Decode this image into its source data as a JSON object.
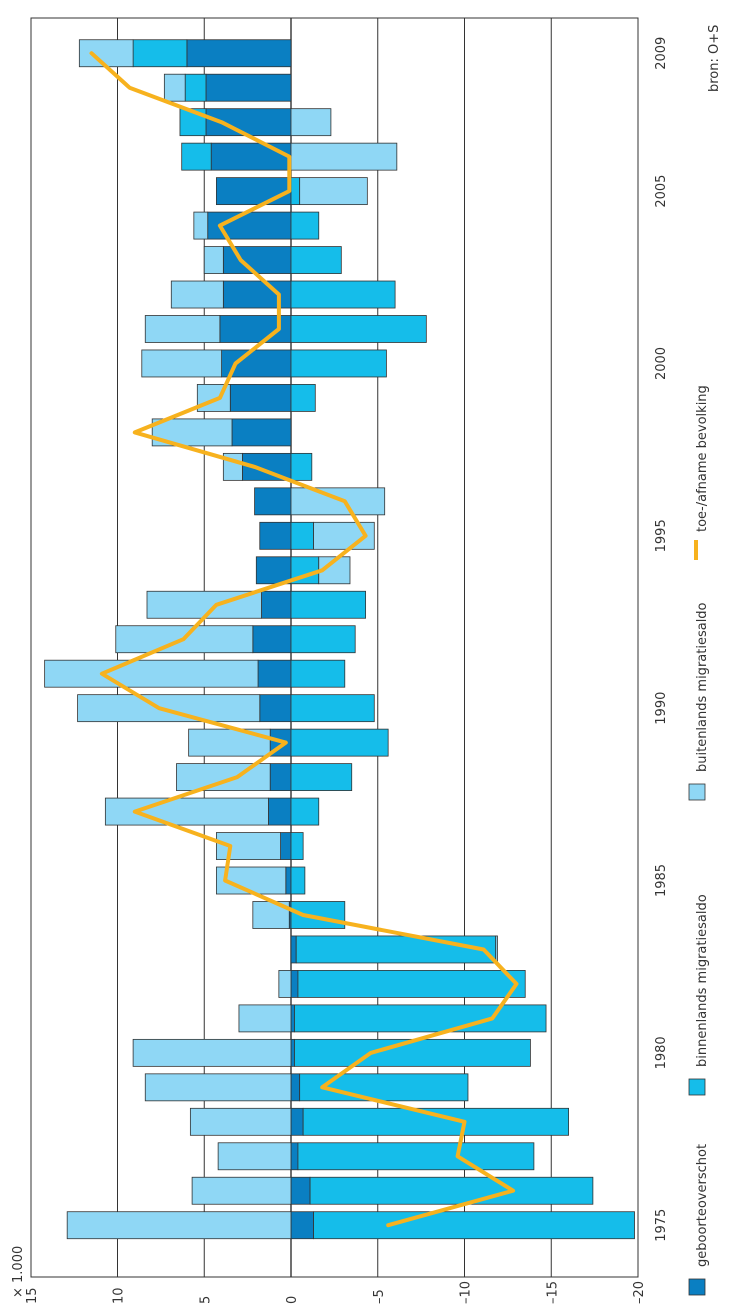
{
  "chart_data": {
    "type": "bar",
    "orientation": "rotated-vertical",
    "stacked": true,
    "unit": "× 1.000",
    "source": "bron: O+S",
    "value_axis": {
      "range": [
        -20,
        15
      ],
      "ticks": [
        "15",
        "10",
        "5",
        "0",
        "–5",
        "–10",
        "–15",
        "–20"
      ],
      "tick_values": [
        15,
        10,
        5,
        0,
        -5,
        -10,
        -15,
        -20
      ]
    },
    "year_ticks": [
      "1975",
      "1980",
      "1985",
      "1990",
      "1995",
      "2000",
      "2005",
      "2009"
    ],
    "grid": true,
    "colors": {
      "geboorteoverschot": "#0a7fc2",
      "binnenlands": "#15bdea",
      "buitenlands": "#8fd7f5",
      "line": "#f7b21e",
      "grid": "#333333"
    },
    "legend": [
      {
        "key": "geboorteoverschot",
        "label": "geboorteoverschot"
      },
      {
        "key": "binnenlands",
        "label": "binnenlands migratiesaldo"
      },
      {
        "key": "buitenlands",
        "label": "buitenlands migratiesaldo"
      },
      {
        "key": "line",
        "label": "toe-/afname bevolking"
      }
    ],
    "years": [
      1975,
      1976,
      1977,
      1978,
      1979,
      1980,
      1981,
      1982,
      1983,
      1984,
      1985,
      1986,
      1987,
      1988,
      1989,
      1990,
      1991,
      1992,
      1993,
      1994,
      1995,
      1996,
      1997,
      1998,
      1999,
      2000,
      2001,
      2002,
      2003,
      2004,
      2005,
      2006,
      2007,
      2008,
      2009
    ],
    "series": [
      {
        "key": "geboorteoverschot",
        "name": "geboorteoverschot",
        "values": [
          -1.3,
          -1.1,
          -0.4,
          -0.7,
          -0.5,
          -0.2,
          -0.2,
          -0.4,
          -0.3,
          0.1,
          0.3,
          0.6,
          1.3,
          1.2,
          1.2,
          1.8,
          1.9,
          2.2,
          1.7,
          2.0,
          1.8,
          2.1,
          2.8,
          3.4,
          3.5,
          4.0,
          4.1,
          3.9,
          3.9,
          4.8,
          4.3,
          4.6,
          4.9,
          4.9,
          6.0
        ]
      },
      {
        "key": "binnenlands",
        "name": "binnenlands migratiesaldo",
        "values": [
          -18.5,
          -16.3,
          -13.6,
          -15.3,
          -9.7,
          -13.6,
          -14.5,
          -13.1,
          -11.5,
          -3.1,
          -0.8,
          -0.7,
          -1.6,
          -3.5,
          -5.6,
          -4.8,
          -3.1,
          -3.7,
          -4.3,
          -1.6,
          -1.3,
          0,
          -1.2,
          0,
          -1.4,
          -5.5,
          -7.8,
          -6.0,
          -2.9,
          -1.6,
          -0.5,
          1.7,
          1.5,
          1.2,
          3.1
        ]
      },
      {
        "key": "buitenlands",
        "name": "buitenlands migratiesaldo",
        "values": [
          12.9,
          5.7,
          4.2,
          5.8,
          8.4,
          9.1,
          3.0,
          0.7,
          -0.1,
          2.1,
          4.0,
          3.7,
          9.4,
          5.4,
          4.7,
          10.5,
          12.3,
          7.9,
          6.6,
          -1.8,
          -3.5,
          -5.4,
          1.1,
          4.6,
          1.9,
          4.6,
          4.3,
          3.0,
          1.1,
          0.8,
          -3.9,
          -6.1,
          -2.3,
          1.2,
          3.1
        ]
      }
    ],
    "line": {
      "key": "line",
      "name": "toe-/afname bevolking",
      "values": [
        -5.6,
        -12.8,
        -9.6,
        -10.0,
        -1.8,
        -4.6,
        -11.6,
        -13.0,
        -11.1,
        -0.7,
        3.8,
        3.5,
        9.0,
        3.1,
        0.3,
        7.6,
        10.9,
        6.2,
        4.3,
        -1.8,
        -4.3,
        -3.1,
        2.1,
        9.0,
        4.1,
        3.2,
        0.7,
        0.7,
        2.9,
        4.1,
        0.1,
        0.1,
        4.0,
        9.3,
        11.5
      ]
    }
  }
}
